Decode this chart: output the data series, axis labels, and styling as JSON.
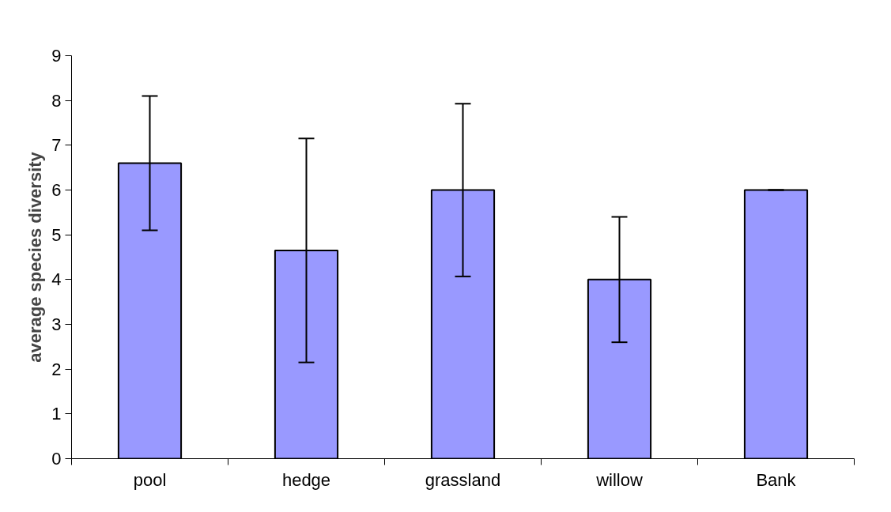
{
  "chart_data": {
    "type": "bar",
    "ylabel": "average species diversity",
    "categories": [
      "pool",
      "hedge",
      "grassland",
      "willow",
      "Bank"
    ],
    "values": [
      6.6,
      4.65,
      6.0,
      4.0,
      6.0
    ],
    "errors": [
      1.5,
      2.5,
      1.93,
      1.4,
      0
    ],
    "color": "#9999ff",
    "ylim": [
      0,
      9
    ],
    "yticks": [
      0,
      1,
      2,
      3,
      4,
      5,
      6,
      7,
      8,
      9
    ],
    "grid": false
  }
}
